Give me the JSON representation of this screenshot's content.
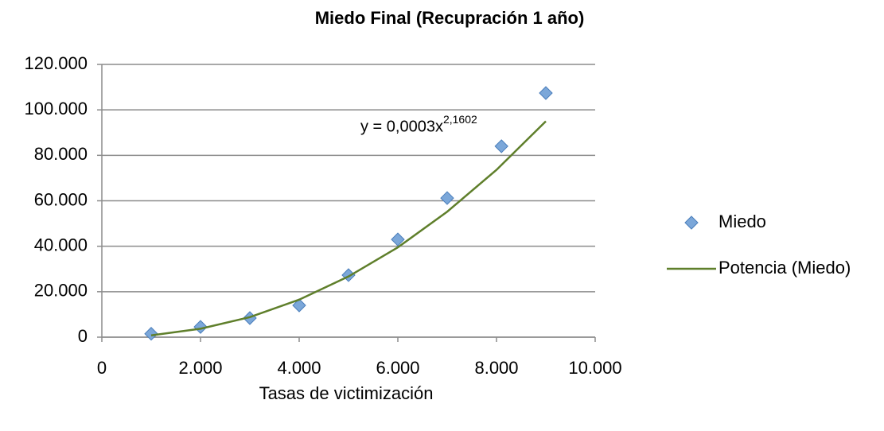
{
  "chart_data": {
    "type": "scatter",
    "title": "Miedo Final (Recupración 1 año)",
    "x_label": "Tasas de victimización",
    "xlim": [
      0,
      10000
    ],
    "xticks": [
      0,
      {
        "value": 2000,
        "label": "2.000"
      },
      {
        "value": 4000,
        "label": "4.000"
      },
      {
        "value": 6000,
        "label": "6.000"
      },
      {
        "value": 8000,
        "label": "8.000"
      },
      {
        "value": 10000,
        "label": "10.000"
      }
    ],
    "ylim": [
      0,
      120000
    ],
    "yticks": [
      0,
      {
        "value": 20000,
        "label": "20.000"
      },
      {
        "value": 40000,
        "label": "40.000"
      },
      {
        "value": 60000,
        "label": "60.000"
      },
      {
        "value": 80000,
        "label": "80.000"
      },
      {
        "value": 100000,
        "label": "100.000"
      },
      {
        "value": 120000,
        "label": "120.000"
      }
    ],
    "grid": true,
    "legend": "right",
    "series": [
      {
        "name": "Miedo",
        "color": "#7ba7d9",
        "marker": "diamond",
        "x": [
          1000,
          2000,
          3000,
          4000,
          5000,
          6000,
          7000,
          8100,
          9000
        ],
        "values": [
          1500,
          4500,
          8400,
          14000,
          27300,
          43000,
          61200,
          84000,
          107400
        ]
      },
      {
        "name": "Potencia (Miedo)",
        "color": "#5f7f2b",
        "marker": "line",
        "x": [
          1000,
          2000,
          3000,
          4000,
          5000,
          6000,
          7000,
          8000,
          9000
        ],
        "values": [
          800,
          3700,
          8800,
          16500,
          26700,
          39500,
          55200,
          73600,
          95000
        ]
      }
    ],
    "annotation": {
      "text": "y = 0,0003x",
      "exponent": "2,1602"
    }
  }
}
